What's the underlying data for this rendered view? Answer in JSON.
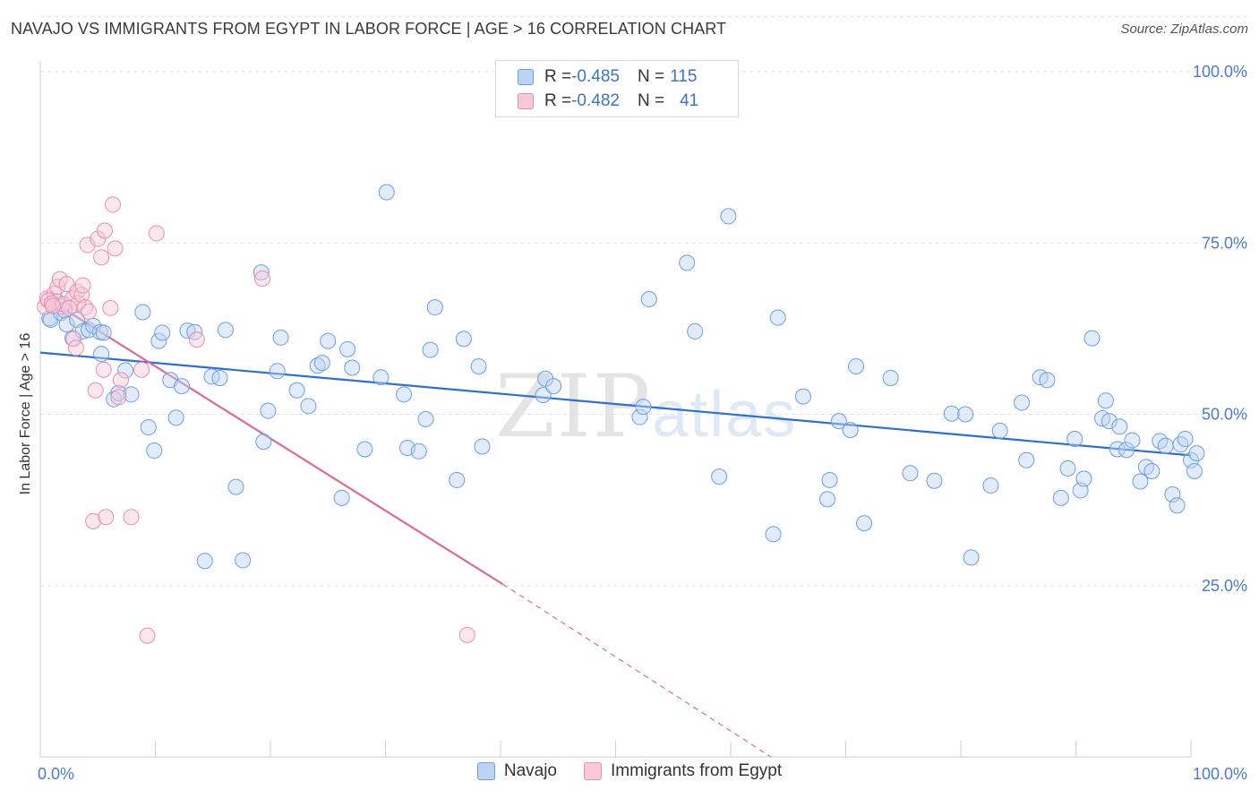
{
  "title": "NAVAJO VS IMMIGRANTS FROM EGYPT IN LABOR FORCE | AGE > 16 CORRELATION CHART",
  "source": "Source: ZipAtlas.com",
  "watermark": {
    "zip": "ZIP",
    "atlas": "atlas"
  },
  "legend": {
    "r_label": "R = ",
    "n_label": "N = ",
    "series": [
      {
        "name": "Navajo",
        "r": "-0.485",
        "n": "115",
        "color": "#6b9fe0",
        "fill": "#bcd3f3"
      },
      {
        "name": "Immigrants from Egypt",
        "r": "-0.482",
        "n": "41",
        "color": "#e58fb0",
        "fill": "#f9c9d9"
      }
    ]
  },
  "chart_data": {
    "type": "scatter",
    "title": "NAVAJO VS IMMIGRANTS FROM EGYPT IN LABOR FORCE | AGE > 16 CORRELATION CHART",
    "xlabel": "",
    "ylabel": "In Labor Force | Age > 16",
    "xlim": [
      0,
      100
    ],
    "ylim": [
      0,
      100
    ],
    "x_tick_labels": [
      "0.0%",
      "100.0%"
    ],
    "y_ticks": [
      25,
      50,
      75,
      100
    ],
    "y_tick_labels": [
      "25.0%",
      "50.0%",
      "75.0%",
      "100.0%"
    ],
    "grid": true,
    "legend_position": "top-center",
    "series": [
      {
        "name": "Navajo",
        "color": "#6b9fe0",
        "trend": {
          "x": [
            0,
            100
          ],
          "y": [
            59.0,
            44.0
          ],
          "color": "#2f6fd1"
        },
        "points": [
          [
            0.8,
            64.0
          ],
          [
            0.9,
            63.8
          ],
          [
            1.4,
            66.5
          ],
          [
            1.8,
            64.8
          ],
          [
            2.1,
            65.2
          ],
          [
            2.3,
            63.1
          ],
          [
            2.8,
            61.1
          ],
          [
            3.2,
            63.8
          ],
          [
            3.7,
            62.1
          ],
          [
            4.2,
            62.3
          ],
          [
            4.6,
            62.9
          ],
          [
            5.2,
            62.0
          ],
          [
            5.3,
            58.8
          ],
          [
            5.5,
            61.9
          ],
          [
            6.4,
            52.2
          ],
          [
            6.8,
            53.1
          ],
          [
            7.4,
            56.4
          ],
          [
            7.9,
            52.9
          ],
          [
            8.9,
            64.9
          ],
          [
            9.4,
            48.1
          ],
          [
            9.9,
            44.7
          ],
          [
            10.3,
            60.7
          ],
          [
            10.6,
            61.9
          ],
          [
            11.3,
            55.0
          ],
          [
            11.8,
            49.5
          ],
          [
            12.3,
            54.1
          ],
          [
            12.8,
            62.2
          ],
          [
            13.4,
            62.0
          ],
          [
            14.3,
            28.6
          ],
          [
            14.9,
            55.5
          ],
          [
            15.6,
            55.3
          ],
          [
            16.1,
            62.3
          ],
          [
            17.0,
            39.4
          ],
          [
            17.6,
            28.7
          ],
          [
            19.2,
            70.7
          ],
          [
            19.4,
            46.0
          ],
          [
            19.8,
            50.5
          ],
          [
            20.6,
            56.3
          ],
          [
            20.9,
            61.2
          ],
          [
            22.3,
            53.5
          ],
          [
            23.3,
            51.2
          ],
          [
            24.1,
            57.1
          ],
          [
            24.5,
            57.5
          ],
          [
            25.0,
            60.7
          ],
          [
            26.2,
            37.8
          ],
          [
            26.7,
            59.5
          ],
          [
            27.1,
            56.8
          ],
          [
            28.2,
            44.9
          ],
          [
            29.6,
            55.4
          ],
          [
            30.1,
            82.4
          ],
          [
            31.6,
            52.9
          ],
          [
            31.9,
            45.1
          ],
          [
            32.9,
            44.6
          ],
          [
            33.5,
            49.3
          ],
          [
            33.9,
            59.4
          ],
          [
            34.3,
            65.6
          ],
          [
            36.2,
            40.4
          ],
          [
            36.8,
            61.0
          ],
          [
            38.1,
            57.0
          ],
          [
            38.4,
            45.3
          ],
          [
            43.7,
            52.8
          ],
          [
            43.9,
            55.2
          ],
          [
            44.6,
            54.1
          ],
          [
            52.1,
            49.6
          ],
          [
            52.4,
            51.1
          ],
          [
            52.9,
            66.8
          ],
          [
            56.2,
            72.1
          ],
          [
            56.9,
            62.1
          ],
          [
            59.0,
            40.9
          ],
          [
            59.8,
            78.9
          ],
          [
            63.7,
            32.5
          ],
          [
            64.1,
            64.1
          ],
          [
            66.3,
            52.6
          ],
          [
            68.4,
            37.6
          ],
          [
            68.6,
            40.4
          ],
          [
            69.4,
            49.0
          ],
          [
            70.4,
            47.7
          ],
          [
            70.9,
            57.0
          ],
          [
            71.6,
            34.1
          ],
          [
            73.9,
            55.3
          ],
          [
            75.6,
            41.4
          ],
          [
            77.7,
            40.3
          ],
          [
            79.2,
            50.1
          ],
          [
            80.4,
            50.0
          ],
          [
            80.9,
            29.1
          ],
          [
            82.6,
            39.6
          ],
          [
            83.4,
            47.6
          ],
          [
            85.3,
            51.7
          ],
          [
            85.7,
            43.3
          ],
          [
            86.9,
            55.4
          ],
          [
            87.5,
            55.0
          ],
          [
            88.7,
            37.8
          ],
          [
            89.3,
            42.1
          ],
          [
            89.9,
            46.4
          ],
          [
            90.4,
            38.9
          ],
          [
            90.7,
            40.6
          ],
          [
            91.4,
            61.1
          ],
          [
            92.3,
            49.4
          ],
          [
            92.6,
            52.0
          ],
          [
            92.9,
            49.0
          ],
          [
            93.6,
            44.9
          ],
          [
            93.8,
            48.2
          ],
          [
            94.4,
            44.8
          ],
          [
            94.9,
            46.2
          ],
          [
            95.6,
            40.2
          ],
          [
            96.1,
            42.3
          ],
          [
            96.6,
            41.7
          ],
          [
            97.3,
            46.1
          ],
          [
            97.8,
            45.4
          ],
          [
            98.4,
            38.3
          ],
          [
            98.8,
            36.7
          ],
          [
            99.1,
            45.6
          ],
          [
            99.5,
            46.4
          ],
          [
            100.0,
            43.3
          ],
          [
            100.3,
            41.7
          ],
          [
            100.5,
            44.3
          ]
        ]
      },
      {
        "name": "Immigrants from Egypt",
        "color": "#e58fb0",
        "trend": {
          "x": [
            0.5,
            40.2
          ],
          "y": [
            67.0,
            25.2
          ],
          "extended_to": [
            63.5,
            0
          ],
          "color": "#de6a95"
        },
        "points": [
          [
            0.4,
            65.7
          ],
          [
            0.6,
            66.9
          ],
          [
            1.2,
            67.6
          ],
          [
            1.5,
            68.6
          ],
          [
            1.7,
            69.7
          ],
          [
            1.9,
            65.7
          ],
          [
            2.3,
            69.0
          ],
          [
            2.8,
            66.9
          ],
          [
            3.2,
            67.9
          ],
          [
            3.3,
            66.2
          ],
          [
            3.6,
            67.4
          ],
          [
            3.7,
            68.8
          ],
          [
            3.9,
            65.6
          ],
          [
            4.2,
            65.0
          ],
          [
            2.9,
            61.0
          ],
          [
            3.1,
            59.7
          ],
          [
            4.1,
            74.7
          ],
          [
            5.0,
            75.6
          ],
          [
            5.3,
            72.9
          ],
          [
            5.6,
            76.8
          ],
          [
            6.3,
            80.6
          ],
          [
            6.5,
            74.2
          ],
          [
            10.1,
            76.4
          ],
          [
            6.1,
            65.5
          ],
          [
            5.5,
            56.5
          ],
          [
            4.8,
            53.5
          ],
          [
            7.0,
            55.0
          ],
          [
            6.8,
            52.5
          ],
          [
            8.8,
            56.5
          ],
          [
            13.6,
            60.9
          ],
          [
            4.6,
            34.4
          ],
          [
            5.7,
            35.0
          ],
          [
            7.9,
            35.0
          ],
          [
            9.3,
            17.7
          ],
          [
            37.1,
            17.8
          ],
          [
            19.3,
            69.8
          ],
          [
            0.7,
            66.6
          ],
          [
            1.0,
            66.2
          ],
          [
            2.0,
            66.1
          ],
          [
            2.5,
            65.5
          ],
          [
            1.1,
            65.8
          ]
        ]
      }
    ]
  }
}
